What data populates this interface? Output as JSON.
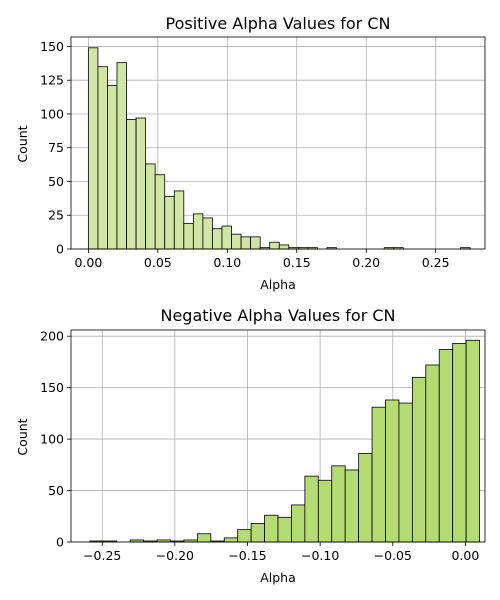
{
  "chart_data": [
    {
      "type": "bar",
      "title": "Positive Alpha Values for CN",
      "xlabel": "Alpha",
      "ylabel": "Count",
      "color": "#cfe6a4",
      "xlim": [
        -0.0125,
        0.2855
      ],
      "ylim": [
        0,
        157
      ],
      "xticks": [
        0.0,
        0.05,
        0.1,
        0.15,
        0.2,
        0.25
      ],
      "xtick_labels": [
        "0.00",
        "0.05",
        "0.10",
        "0.15",
        "0.20",
        "0.25"
      ],
      "yticks": [
        0,
        25,
        50,
        75,
        100,
        125,
        150
      ],
      "bin_start": 0.0,
      "bin_width": 0.00687,
      "values": [
        149,
        135,
        121,
        138,
        96,
        97,
        63,
        55,
        39,
        43,
        19,
        26,
        23,
        15,
        17,
        11,
        9,
        9,
        1,
        5,
        3,
        1,
        1,
        1,
        0,
        1,
        0,
        0,
        0,
        0,
        0,
        1,
        1,
        0,
        0,
        0,
        0,
        0,
        0,
        1
      ]
    },
    {
      "type": "bar",
      "title": "Negative Alpha Values for CN",
      "xlabel": "Alpha",
      "ylabel": "Count",
      "color": "#b5dc73",
      "xlim": [
        -0.2715,
        0.0135
      ],
      "ylim": [
        0,
        206
      ],
      "xticks": [
        -0.25,
        -0.2,
        -0.15,
        -0.1,
        -0.05,
        0.0
      ],
      "xtick_labels": [
        "−0.25",
        "−0.20",
        "−0.15",
        "−0.10",
        "−0.05",
        "0.00"
      ],
      "yticks": [
        0,
        50,
        100,
        150,
        200
      ],
      "bin_start": -0.2585,
      "bin_width": 0.00925,
      "values": [
        1,
        1,
        0,
        2,
        1,
        2,
        1,
        2,
        8,
        1,
        4,
        12,
        18,
        26,
        24,
        36,
        64,
        60,
        74,
        70,
        86,
        131,
        138,
        135,
        160,
        172,
        187,
        193,
        196
      ]
    }
  ]
}
